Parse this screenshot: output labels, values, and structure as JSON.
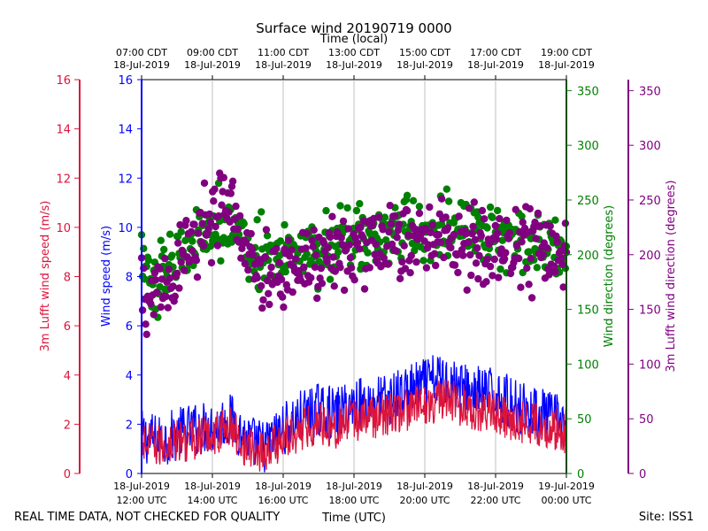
{
  "chart_data": {
    "type": "scatter",
    "title": "Surface wind 20190719 0000",
    "top_axis_title": "Time (local)",
    "xlabel": "Time (UTC)",
    "footer_left": "REAL TIME DATA, NOT CHECKED FOR QUALITY",
    "footer_right": "Site: ISS1",
    "x_range_hours_utc": [
      12,
      24
    ],
    "bottom_ticks": [
      {
        "hour": 12,
        "line1": "18-Jul-2019",
        "line2": "12:00 UTC"
      },
      {
        "hour": 14,
        "line1": "18-Jul-2019",
        "line2": "14:00 UTC"
      },
      {
        "hour": 16,
        "line1": "18-Jul-2019",
        "line2": "16:00 UTC"
      },
      {
        "hour": 18,
        "line1": "18-Jul-2019",
        "line2": "18:00 UTC"
      },
      {
        "hour": 20,
        "line1": "18-Jul-2019",
        "line2": "20:00 UTC"
      },
      {
        "hour": 22,
        "line1": "18-Jul-2019",
        "line2": "22:00 UTC"
      },
      {
        "hour": 24,
        "line1": "19-Jul-2019",
        "line2": "00:00 UTC"
      }
    ],
    "top_ticks": [
      {
        "hour": 12,
        "line1": "07:00 CDT",
        "line2": "18-Jul-2019"
      },
      {
        "hour": 14,
        "line1": "09:00 CDT",
        "line2": "18-Jul-2019"
      },
      {
        "hour": 16,
        "line1": "11:00 CDT",
        "line2": "18-Jul-2019"
      },
      {
        "hour": 18,
        "line1": "13:00 CDT",
        "line2": "18-Jul-2019"
      },
      {
        "hour": 20,
        "line1": "15:00 CDT",
        "line2": "18-Jul-2019"
      },
      {
        "hour": 22,
        "line1": "17:00 CDT",
        "line2": "18-Jul-2019"
      },
      {
        "hour": 24,
        "line1": "19:00 CDT",
        "line2": "18-Jul-2019"
      }
    ],
    "axes": {
      "lufft_speed": {
        "label": "3m Lufft wind speed (m/s)",
        "ylim": [
          0,
          16
        ],
        "ticks": [
          0,
          2,
          4,
          6,
          8,
          10,
          12,
          14,
          16
        ],
        "color": "#dc143c"
      },
      "wind_speed": {
        "label": "Wind speed (m/s)",
        "ylim": [
          0,
          16
        ],
        "ticks": [
          0,
          2,
          4,
          6,
          8,
          10,
          12,
          14,
          16
        ],
        "color": "#0000ff"
      },
      "wind_dir": {
        "label": "Wind direction (degrees)",
        "ylim": [
          0,
          360
        ],
        "ticks": [
          0,
          50,
          100,
          150,
          200,
          250,
          300,
          350
        ],
        "color": "#008000"
      },
      "lufft_dir": {
        "label": "3m Lufft wind direction (degrees)",
        "ylim": [
          0,
          360
        ],
        "ticks": [
          0,
          50,
          100,
          150,
          200,
          250,
          300,
          350
        ],
        "color": "#800080"
      }
    },
    "series": [
      {
        "name": "Wind speed (m/s)",
        "kind": "line",
        "axis": "wind_speed",
        "color": "#0000ff",
        "x": [
          12.0,
          12.5,
          13.0,
          13.5,
          14.0,
          14.5,
          15.0,
          15.5,
          16.0,
          16.5,
          17.0,
          17.5,
          18.0,
          18.5,
          19.0,
          19.5,
          20.0,
          20.5,
          21.0,
          21.5,
          22.0,
          22.5,
          23.0,
          23.5,
          24.0
        ],
        "y": [
          1.5,
          1.3,
          1.6,
          1.8,
          1.9,
          2.2,
          1.3,
          1.1,
          1.8,
          2.3,
          2.6,
          2.4,
          2.8,
          2.9,
          3.0,
          3.3,
          3.6,
          3.9,
          3.5,
          3.3,
          3.2,
          2.8,
          2.5,
          2.3,
          2.0
        ],
        "spread": 1.1
      },
      {
        "name": "3m Lufft wind speed (m/s)",
        "kind": "line",
        "axis": "lufft_speed",
        "color": "#dc143c",
        "x": [
          12.0,
          12.5,
          13.0,
          13.5,
          14.0,
          14.5,
          15.0,
          15.5,
          16.0,
          16.5,
          17.0,
          17.5,
          18.0,
          18.5,
          19.0,
          19.5,
          20.0,
          20.5,
          21.0,
          21.5,
          22.0,
          22.5,
          23.0,
          23.5,
          24.0
        ],
        "y": [
          1.2,
          1.1,
          1.3,
          1.4,
          1.6,
          1.9,
          1.0,
          0.9,
          1.4,
          1.8,
          2.1,
          1.9,
          2.2,
          2.3,
          2.4,
          2.6,
          2.8,
          3.0,
          2.8,
          2.6,
          2.5,
          2.2,
          2.0,
          1.9,
          1.7
        ],
        "spread": 0.9
      },
      {
        "name": "Wind direction (degrees)",
        "kind": "scatter",
        "axis": "wind_dir",
        "color": "#008000",
        "x": [
          12.0,
          12.5,
          13.0,
          13.5,
          14.0,
          14.5,
          15.0,
          15.5,
          16.0,
          16.5,
          17.0,
          17.5,
          18.0,
          18.5,
          19.0,
          19.5,
          20.0,
          20.5,
          21.0,
          21.5,
          22.0,
          22.5,
          23.0,
          23.5,
          24.0
        ],
        "y": [
          185,
          180,
          200,
          215,
          225,
          235,
          210,
          200,
          195,
          200,
          205,
          208,
          212,
          215,
          218,
          220,
          222,
          225,
          222,
          220,
          218,
          215,
          212,
          210,
          208
        ],
        "spread": 30
      },
      {
        "name": "3m Lufft wind direction (degrees)",
        "kind": "scatter",
        "axis": "lufft_dir",
        "color": "#800080",
        "x": [
          12.0,
          12.5,
          13.0,
          13.5,
          14.0,
          14.5,
          15.0,
          15.5,
          16.0,
          16.5,
          17.0,
          17.5,
          18.0,
          18.5,
          19.0,
          19.5,
          20.0,
          20.5,
          21.0,
          21.5,
          22.0,
          22.5,
          23.0,
          23.5,
          24.0
        ],
        "y": [
          165,
          160,
          195,
          215,
          235,
          250,
          200,
          180,
          180,
          190,
          195,
          200,
          208,
          210,
          212,
          215,
          218,
          225,
          212,
          210,
          205,
          205,
          208,
          205,
          200
        ],
        "spread": 38
      }
    ]
  }
}
